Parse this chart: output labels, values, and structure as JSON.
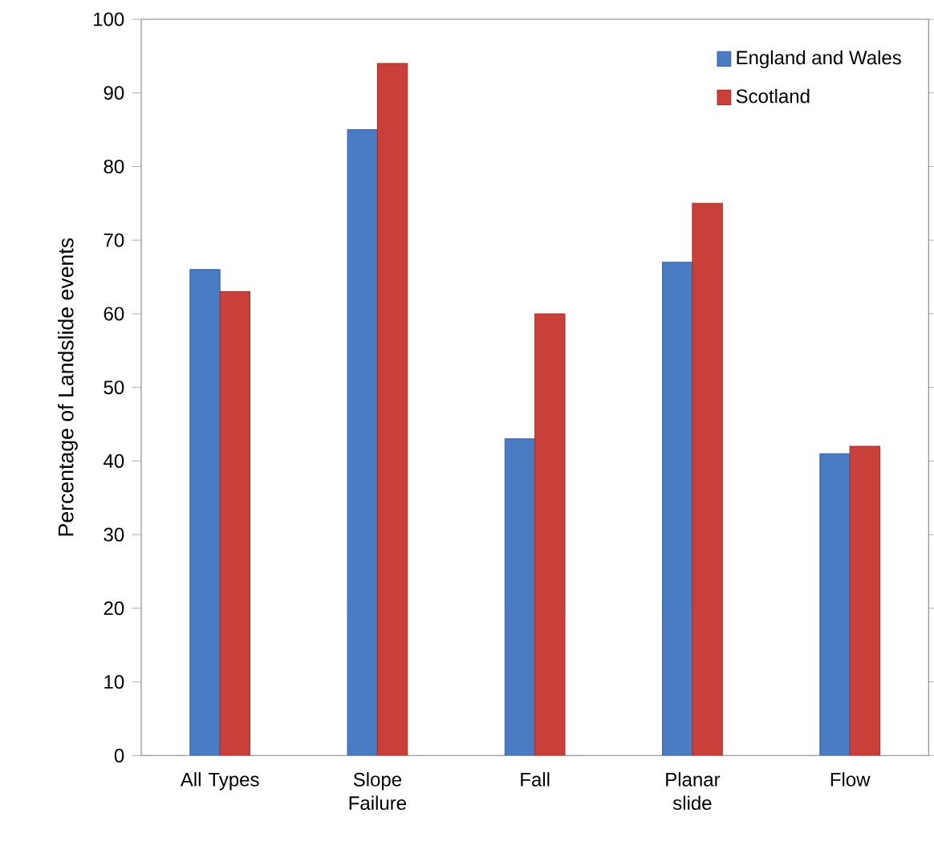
{
  "chart_data": {
    "type": "bar",
    "ylabel": "Percentage of Landslide events",
    "categories": [
      "All Types",
      "Slope Failure",
      "Fall",
      "Planar slide",
      "Flow"
    ],
    "series": [
      {
        "name": "England and Wales",
        "color": "#4a7cc4",
        "values": [
          66,
          85,
          43,
          67,
          41
        ]
      },
      {
        "name": "Scotland",
        "color": "#c9403a",
        "values": [
          63,
          94,
          60,
          75,
          42
        ]
      }
    ],
    "ylim": [
      0,
      100
    ],
    "yticks": [
      0,
      10,
      20,
      30,
      40,
      50,
      60,
      70,
      80,
      90,
      100
    ],
    "legend": "top right",
    "grid": false
  }
}
